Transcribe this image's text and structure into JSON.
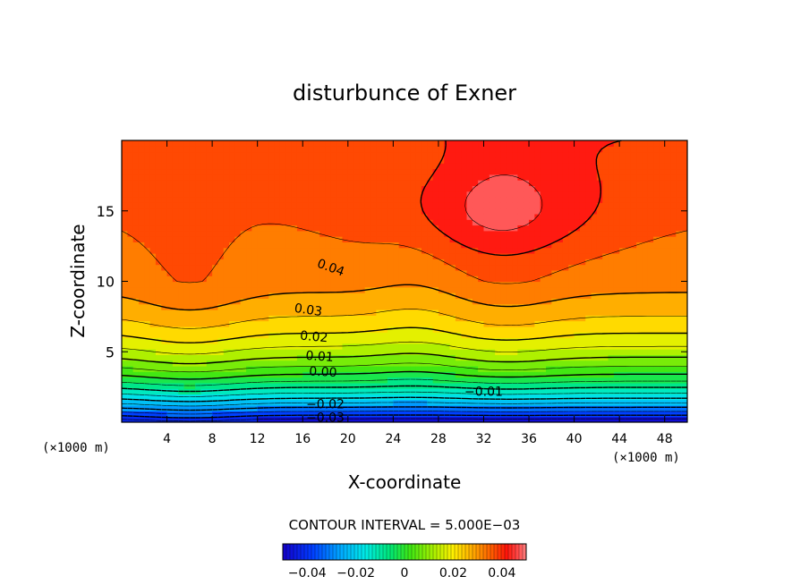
{
  "chart_data": {
    "type": "contour",
    "title": "disturbunce of Exner",
    "xlabel": "X-coordinate",
    "ylabel": "Z-coordinate",
    "x_unit_label": "(×1000 m)",
    "z_unit_label": "(×1000 m)",
    "xlim": [
      0,
      50
    ],
    "ylim": [
      0,
      20
    ],
    "x_ticks": [
      4,
      8,
      12,
      16,
      20,
      24,
      28,
      32,
      36,
      40,
      44,
      48
    ],
    "x_tick_labels": [
      "4",
      "8",
      "12",
      "16",
      "20",
      "24",
      "28",
      "32",
      "36",
      "40",
      "44",
      "48"
    ],
    "y_ticks": [
      5,
      10,
      15
    ],
    "y_tick_labels": [
      "5",
      "10",
      "15"
    ],
    "contour_interval_text": "CONTOUR INTERVAL = 5.000E−03",
    "contour_interval": 0.005,
    "value_range": [
      -0.05,
      0.05
    ],
    "contour_labels": [
      {
        "text": "0.04",
        "x": 18.5,
        "z": 11.0,
        "rotate": 20
      },
      {
        "text": "0.03",
        "x": 16.5,
        "z": 8.0,
        "rotate": 8
      },
      {
        "text": "0.02",
        "x": 17.0,
        "z": 6.1,
        "rotate": 5
      },
      {
        "text": "0.01",
        "x": 17.5,
        "z": 4.7,
        "rotate": 4
      },
      {
        "text": "0.00",
        "x": 17.8,
        "z": 3.6,
        "rotate": 3
      },
      {
        "text": "−0.01",
        "x": 32.0,
        "z": 2.2,
        "rotate": 0
      },
      {
        "text": "−0.02",
        "x": 18.0,
        "z": 1.3,
        "rotate": 0
      },
      {
        "text": "−0.03",
        "x": 18.0,
        "z": 0.35,
        "rotate": 0
      }
    ],
    "colorbar": {
      "tick_values": [
        -0.04,
        -0.02,
        0,
        0.02,
        0.04
      ],
      "tick_labels": [
        "−0.04",
        "−0.02",
        "0",
        "0.02",
        "0.04"
      ],
      "range": [
        -0.05,
        0.05
      ]
    }
  }
}
